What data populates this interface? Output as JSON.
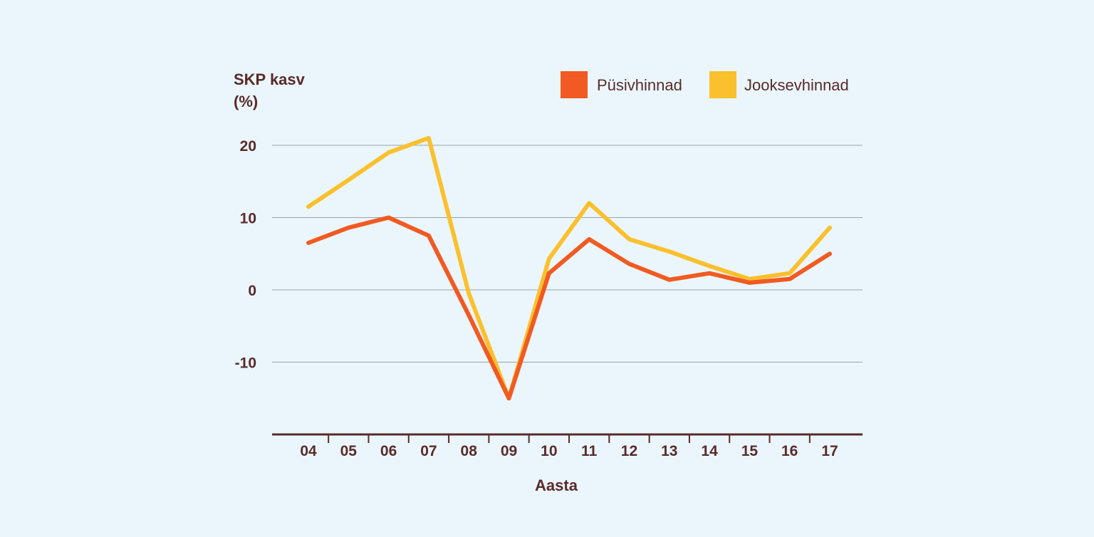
{
  "chart_data": {
    "type": "line",
    "ylabel_line1": "SKP kasv",
    "ylabel_line2": "(%)",
    "xlabel": "Aasta",
    "categories": [
      "04",
      "05",
      "06",
      "07",
      "08",
      "09",
      "10",
      "11",
      "12",
      "13",
      "14",
      "15",
      "16",
      "17"
    ],
    "yticks": [
      20,
      10,
      0,
      -10
    ],
    "ytick_labels": [
      "20",
      "10",
      "0",
      "-10"
    ],
    "ylim": [
      -20,
      20
    ],
    "grid": true,
    "legend_position": "top-right",
    "series": [
      {
        "name": "Püsivhinnad",
        "color": "#f15a22",
        "values": [
          6.5,
          8.6,
          10,
          7.5,
          -3.5,
          -15,
          2.3,
          7,
          3.6,
          1.4,
          2.3,
          1,
          1.5,
          5
        ]
      },
      {
        "name": "Jooksevhinnad",
        "color": "#fbc02d",
        "values": [
          11.5,
          15.2,
          19,
          21,
          -0.5,
          -15,
          4.3,
          12,
          7,
          5.3,
          3.3,
          1.5,
          2.3,
          8.6
        ]
      }
    ]
  }
}
